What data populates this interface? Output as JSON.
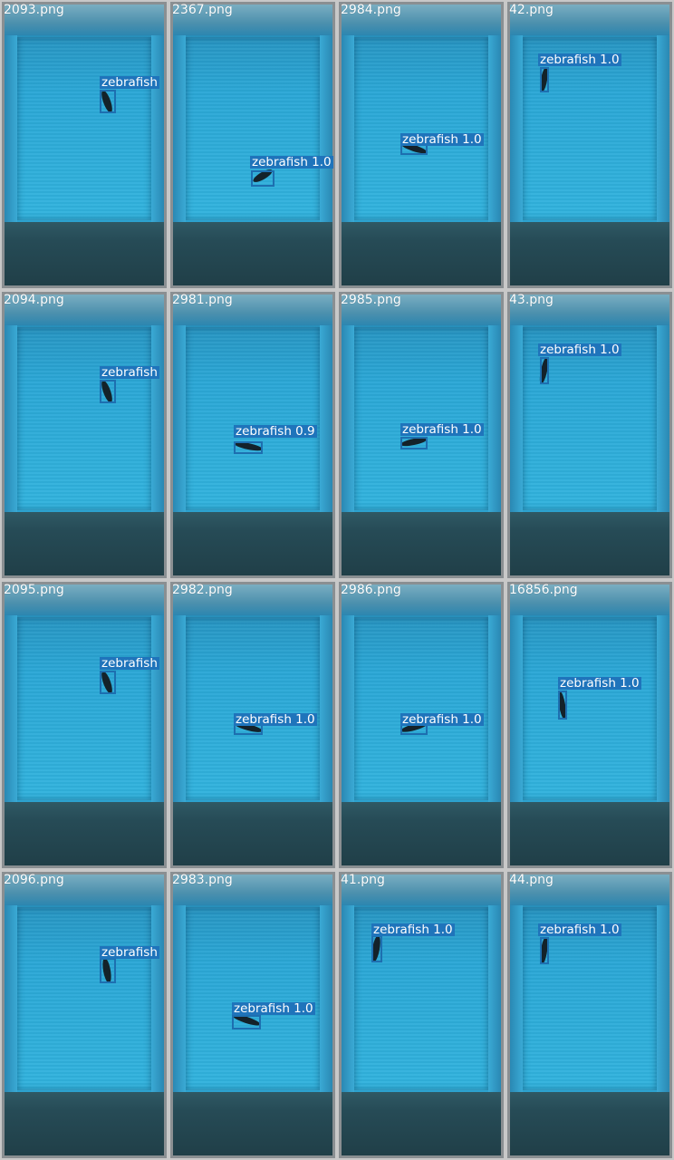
{
  "tiles": [
    {
      "filename": "2093.png",
      "label": "zebrafish"
    },
    {
      "filename": "2367.png",
      "label": "zebrafish  1.0"
    },
    {
      "filename": "2984.png",
      "label": "zebrafish  1.0"
    },
    {
      "filename": "42.png",
      "label": "zebrafish  1.0"
    },
    {
      "filename": "2094.png",
      "label": "zebrafish"
    },
    {
      "filename": "2981.png",
      "label": "zebrafish  0.9"
    },
    {
      "filename": "2985.png",
      "label": "zebrafish  1.0"
    },
    {
      "filename": "43.png",
      "label": "zebrafish  1.0"
    },
    {
      "filename": "2095.png",
      "label": "zebrafish"
    },
    {
      "filename": "2982.png",
      "label": "zebrafish  1.0"
    },
    {
      "filename": "2986.png",
      "label": "zebrafish  1.0"
    },
    {
      "filename": "16856.png",
      "label": "zebrafish  1.0"
    },
    {
      "filename": "2096.png",
      "label": "zebrafish"
    },
    {
      "filename": "2983.png",
      "label": "zebrafish  1.0"
    },
    {
      "filename": "41.png",
      "label": "zebrafish  1.0"
    },
    {
      "filename": "44.png",
      "label": "zebrafish  1.0"
    }
  ],
  "colors": {
    "bbox": "#1d6fb0",
    "label_bg": "#1f74bb",
    "water": "#2aa7d6",
    "floor": "#264b56"
  }
}
